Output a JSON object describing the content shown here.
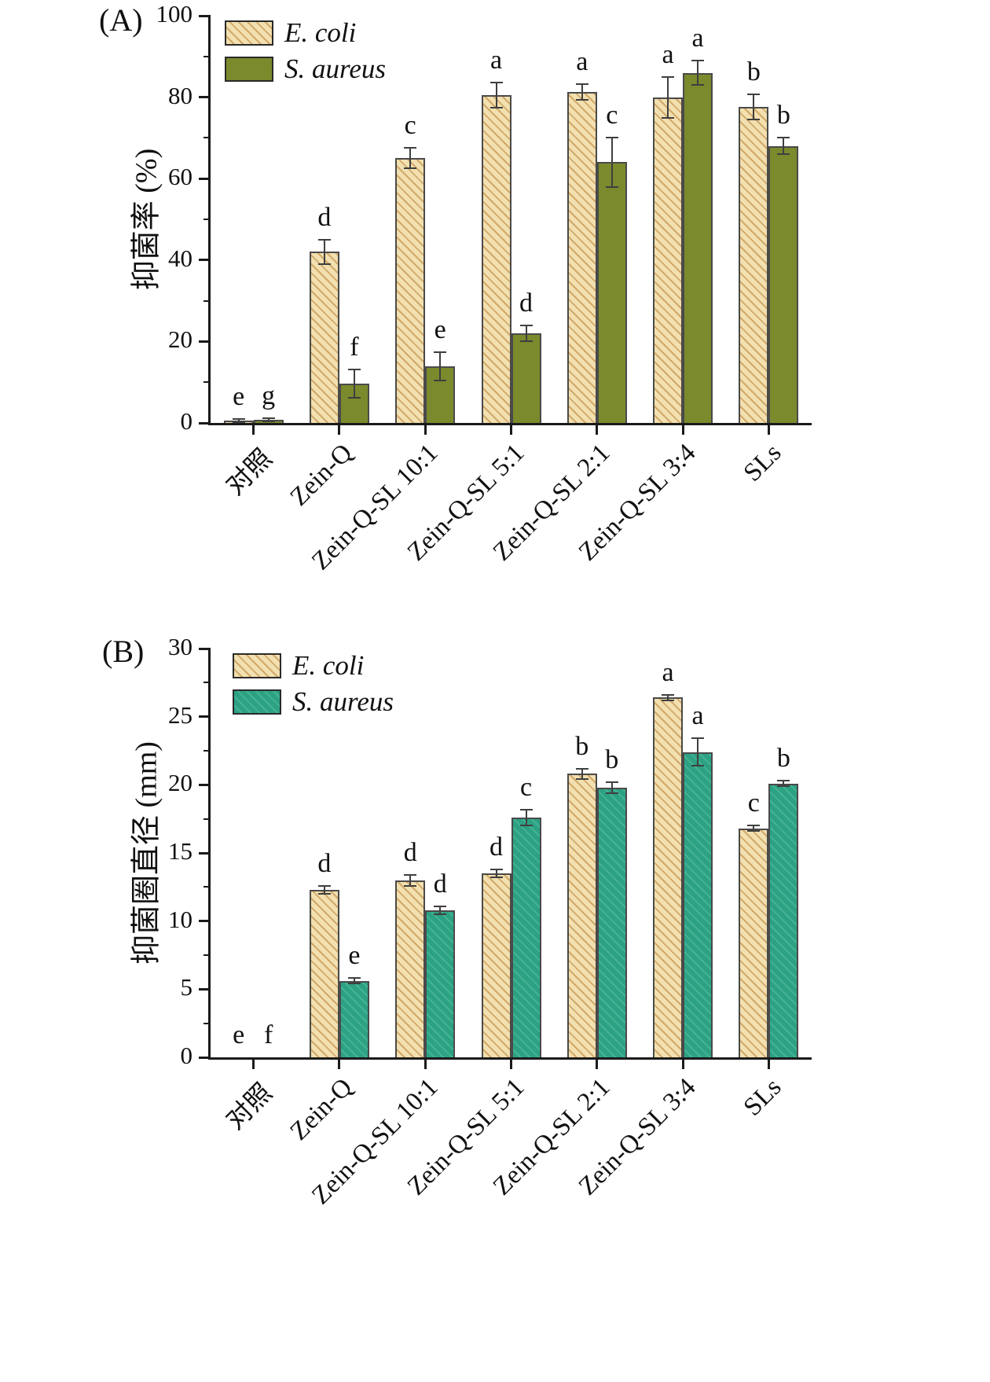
{
  "figure": {
    "background": "#ffffff"
  },
  "chart_data": [
    {
      "type": "bar",
      "panel_label": "(A)",
      "ylabel": "抑菌率 (%)",
      "ylim": [
        0,
        100
      ],
      "yticks": [
        0,
        20,
        40,
        60,
        80,
        100
      ],
      "minor_step": 10,
      "legend_position": "top-left",
      "grid": false,
      "categories": [
        "对照",
        "Zein-Q",
        "Zein-Q-SL 10:1",
        "Zein-Q-SL 5:1",
        "Zein-Q-SL 2:1",
        "Zein-Q-SL 3:4",
        "SLs"
      ],
      "series": [
        {
          "name": "E. coli",
          "fill": "#f3e0b0",
          "hatch": "#d0a96a",
          "values": [
            0.5,
            42,
            65,
            80.5,
            81.3,
            80,
            77.6
          ],
          "errors": [
            0.4,
            3,
            2.5,
            3,
            2,
            5,
            3
          ],
          "letters": [
            "e",
            "d",
            "c",
            "a",
            "a",
            "a",
            "b"
          ]
        },
        {
          "name": "S. aureus",
          "fill": "#7a8a2c",
          "hatch": null,
          "values": [
            0.7,
            9.7,
            13.9,
            22,
            64,
            86,
            68
          ],
          "errors": [
            0.4,
            3.5,
            3.5,
            2,
            6,
            3,
            2
          ],
          "letters": [
            "g",
            "f",
            "e",
            "d",
            "c",
            "a",
            "b"
          ]
        }
      ]
    },
    {
      "type": "bar",
      "panel_label": "(B)",
      "ylabel": "抑菌圈直径 (mm)",
      "ylim": [
        0,
        30
      ],
      "yticks": [
        0,
        5,
        10,
        15,
        20,
        25,
        30
      ],
      "minor_step": 2.5,
      "legend_position": "top-left",
      "grid": false,
      "categories": [
        "对照",
        "Zein-Q",
        "Zein-Q-SL 10:1",
        "Zein-Q-SL 5:1",
        "Zein-Q-SL 2:1",
        "Zein-Q-SL 3:4",
        "SLs"
      ],
      "series": [
        {
          "name": "E. coli",
          "fill": "#f3e0b0",
          "hatch": "#d0a96a",
          "values": [
            0,
            12.3,
            13.0,
            13.5,
            20.8,
            26.4,
            16.8
          ],
          "errors": [
            0,
            0.3,
            0.4,
            0.3,
            0.4,
            0.2,
            0.2
          ],
          "letters": [
            "e",
            "d",
            "d",
            "d",
            "b",
            "a",
            "c"
          ]
        },
        {
          "name": "S. aureus",
          "fill": "#2ca183",
          "hatch": "#45b394",
          "values": [
            0,
            5.6,
            10.8,
            17.6,
            19.8,
            22.4,
            20.1
          ],
          "errors": [
            0,
            0.2,
            0.3,
            0.6,
            0.4,
            1.0,
            0.2
          ],
          "letters": [
            "f",
            "e",
            "d",
            "c",
            "b",
            "a",
            "b"
          ]
        }
      ]
    }
  ]
}
